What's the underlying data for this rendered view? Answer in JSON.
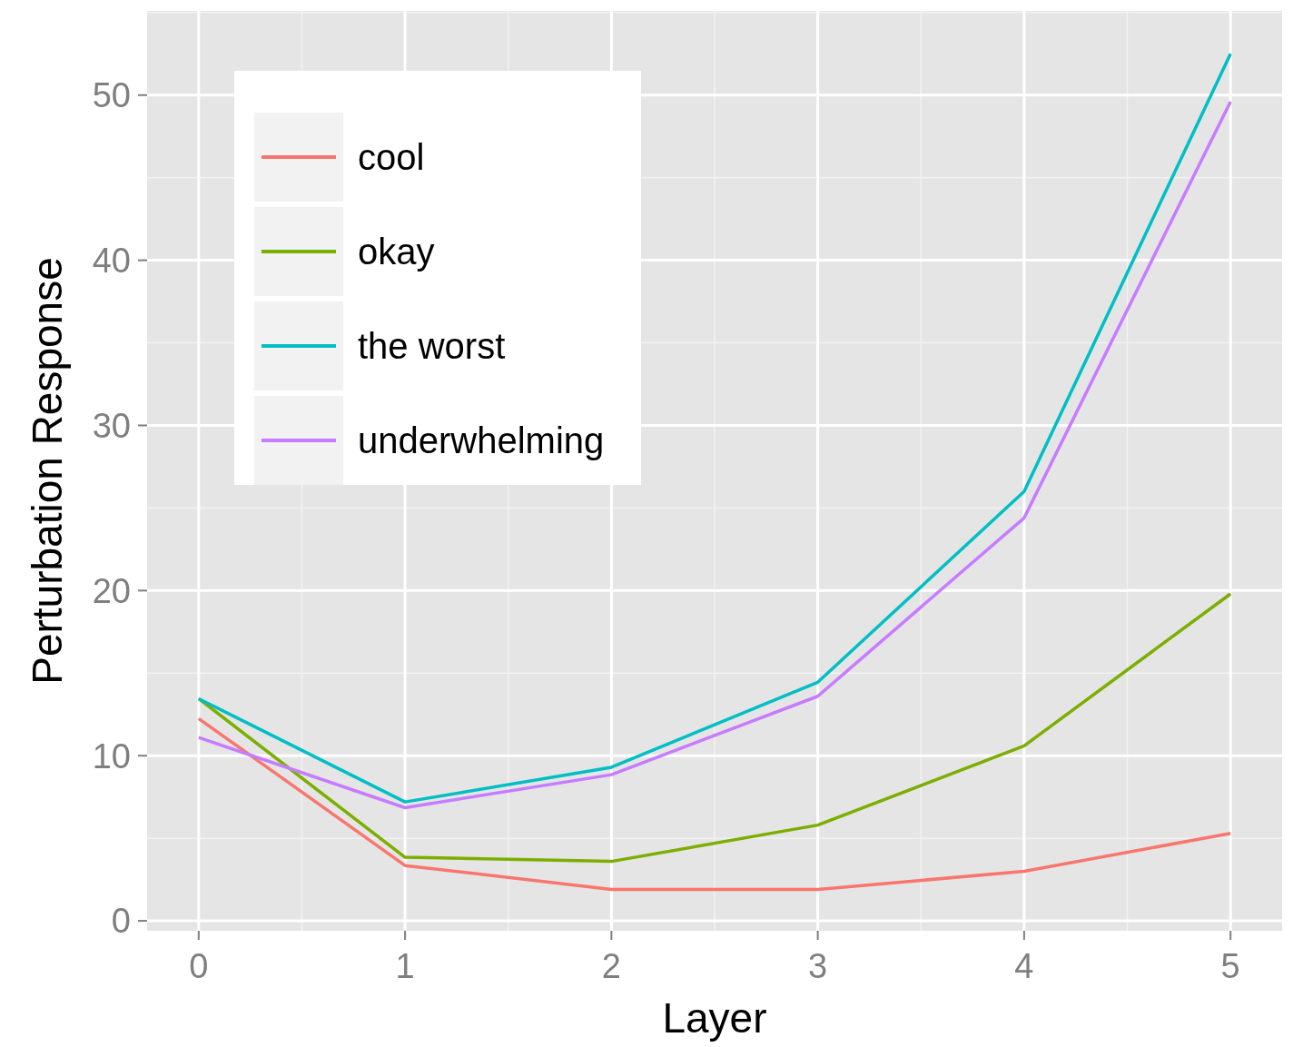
{
  "chart_data": {
    "type": "line",
    "xlabel": "Layer",
    "ylabel": "Perturbation Response",
    "x": [
      0,
      1,
      2,
      3,
      4,
      5
    ],
    "series": [
      {
        "name": "cool",
        "color": "#f8766d",
        "values": [
          12.25,
          3.35,
          1.9,
          1.9,
          3.0,
          5.3
        ]
      },
      {
        "name": "okay",
        "color": "#7cae00",
        "values": [
          13.45,
          3.85,
          3.6,
          5.8,
          10.6,
          19.8
        ]
      },
      {
        "name": "the worst",
        "color": "#00bfc4",
        "values": [
          13.45,
          7.2,
          9.3,
          14.45,
          26.0,
          52.5
        ]
      },
      {
        "name": "underwhelming",
        "color": "#c77cff",
        "values": [
          11.1,
          6.85,
          8.85,
          13.6,
          24.4,
          49.6
        ]
      }
    ],
    "xlim": [
      -0.25,
      5.25
    ],
    "xticks": [
      0,
      1,
      2,
      3,
      4,
      5
    ],
    "ylim": [
      -0.6,
      55.1
    ],
    "yticks": [
      0,
      10,
      20,
      30,
      40,
      50
    ],
    "grid": true,
    "legend": "top left",
    "marker": "none",
    "line_style": "solid"
  }
}
